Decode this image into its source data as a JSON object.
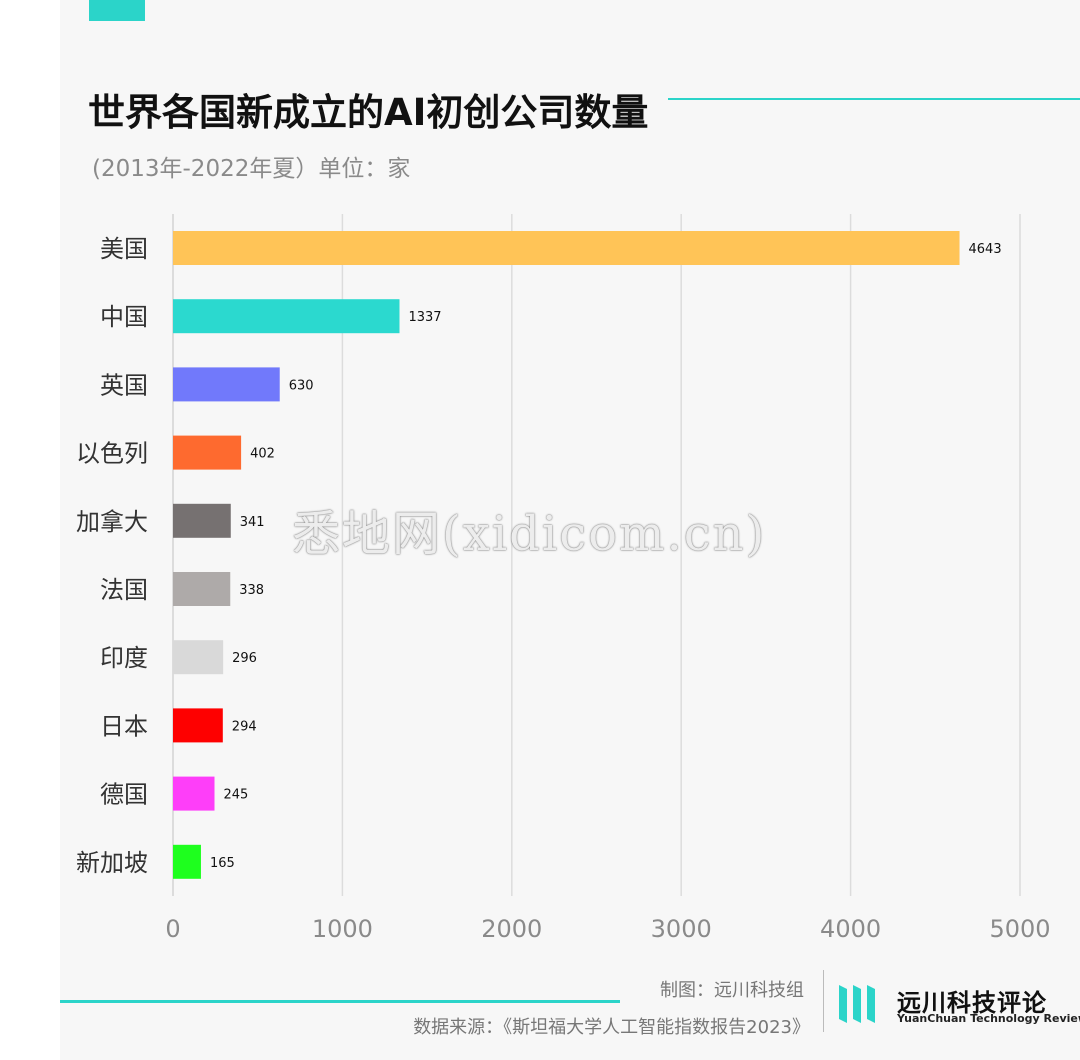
{
  "header": {
    "title": "世界各国新成立的AI初创公司数量",
    "subtitle": "(2013年-2022年夏）单位：家"
  },
  "watermark": "悉地网(xidicom.cn)",
  "footer": {
    "credit": "制图：远川科技组",
    "source": "数据来源：《斯坦福大学人工智能指数报告2023》",
    "brand_name": "远川科技评论",
    "brand_en": "YuanChuan Technology Review"
  },
  "colors": {
    "accent": "#2bd4c9",
    "grid": "#dcdcdc"
  },
  "chart_data": {
    "type": "bar",
    "orientation": "horizontal",
    "categories": [
      "美国",
      "中国",
      "英国",
      "以色列",
      "加拿大",
      "法国",
      "印度",
      "日本",
      "德国",
      "新加坡"
    ],
    "values": [
      4643,
      1337,
      630,
      402,
      341,
      338,
      296,
      294,
      245,
      165
    ],
    "bar_colors": [
      "#ffc457",
      "#2bd9cf",
      "#7179fb",
      "#fe6a2f",
      "#767171",
      "#aeaaa9",
      "#d9d9d9",
      "#fe0000",
      "#fe3ef9",
      "#1eff1e"
    ],
    "xlim": [
      0,
      5000
    ],
    "xticks": [
      0,
      1000,
      2000,
      3000,
      4000,
      5000
    ],
    "grid": true
  }
}
